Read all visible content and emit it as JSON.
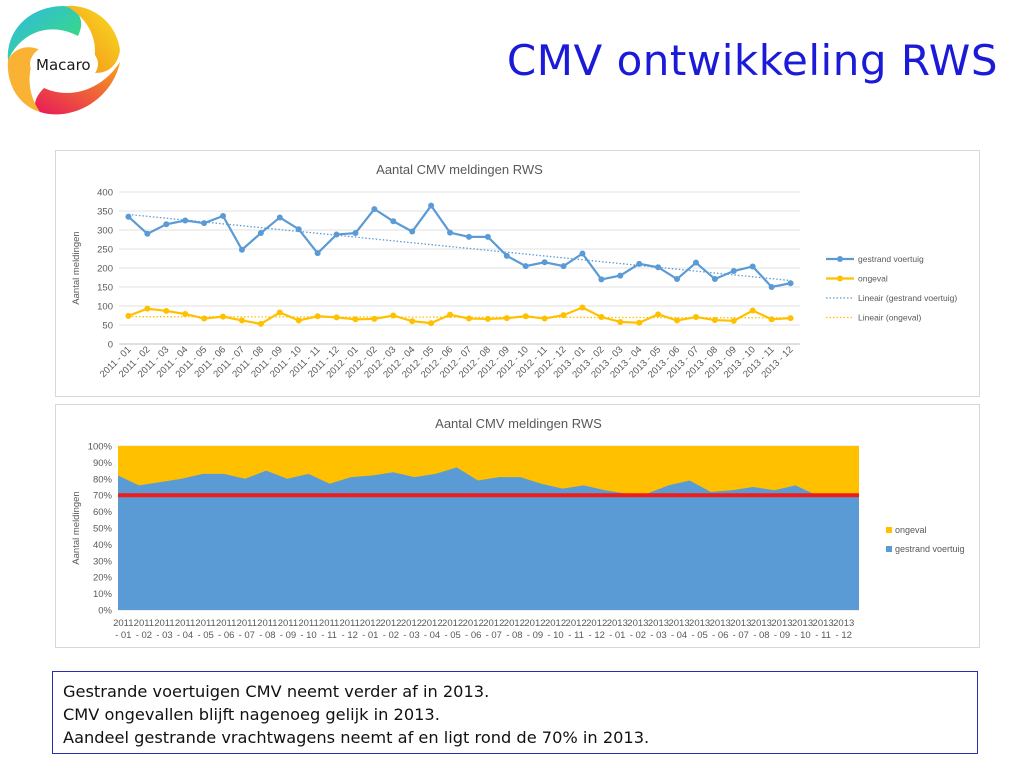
{
  "header": {
    "logo_text": "Macaro",
    "title": "CMV ontwikkeling RWS"
  },
  "chart_data": [
    {
      "type": "line",
      "title": "Aantal CMV meldingen RWS",
      "xlabel": "",
      "ylabel": "Aantal meldingen",
      "ylim": [
        0,
        400
      ],
      "yticks": [
        0,
        50,
        100,
        150,
        200,
        250,
        300,
        350,
        400
      ],
      "grid": true,
      "legend_position": "right",
      "categories": [
        "2011 - 01",
        "2011 - 02",
        "2011 - 03",
        "2011 - 04",
        "2011 - 05",
        "2011 - 06",
        "2011 - 07",
        "2011 - 08",
        "2011 - 09",
        "2011 - 10",
        "2011 - 11",
        "2011 - 12",
        "2012 - 01",
        "2012 - 02",
        "2012 - 03",
        "2012 - 04",
        "2012 - 05",
        "2012 - 06",
        "2012 - 07",
        "2012 - 08",
        "2012 - 09",
        "2012 - 10",
        "2012 - 11",
        "2012 - 12",
        "2013 - 01",
        "2013 - 02",
        "2013 - 03",
        "2013 - 04",
        "2013 - 05",
        "2013 - 06",
        "2013 - 07",
        "2013 - 08",
        "2013 - 09",
        "2013 - 10",
        "2013 - 11",
        "2013 - 12"
      ],
      "series": [
        {
          "name": "gestrand voertuig",
          "color": "#5b9bd5",
          "values": [
            335,
            290,
            315,
            325,
            318,
            337,
            248,
            292,
            333,
            302,
            239,
            288,
            292,
            355,
            323,
            296,
            364,
            293,
            282,
            282,
            232,
            205,
            215,
            205,
            238,
            170,
            180,
            211,
            202,
            171,
            214,
            171,
            192,
            204,
            150,
            160
          ]
        },
        {
          "name": "ongeval",
          "color": "#ffc000",
          "values": [
            74,
            93,
            87,
            79,
            67,
            72,
            62,
            53,
            83,
            62,
            73,
            70,
            65,
            66,
            75,
            60,
            55,
            77,
            67,
            66,
            68,
            73,
            67,
            76,
            96,
            71,
            58,
            56,
            78,
            62,
            71,
            63,
            61,
            88,
            65,
            68
          ]
        }
      ],
      "trendlines": [
        {
          "name": "Lineair (gestrand voertuig)",
          "color": "#5b9bd5",
          "start": 341,
          "end": 167
        },
        {
          "name": "Lineair (ongeval)",
          "color": "#ffc000",
          "start": 72,
          "end": 69
        }
      ]
    },
    {
      "type": "area",
      "stacked_percent": true,
      "title": "Aantal CMV meldingen RWS",
      "xlabel": "",
      "ylabel": "Aantal meldingen",
      "ylim": [
        0,
        100
      ],
      "yticks": [
        "0%",
        "10%",
        "20%",
        "30%",
        "40%",
        "50%",
        "60%",
        "70%",
        "80%",
        "90%",
        "100%"
      ],
      "grid": true,
      "legend_position": "right",
      "categories": [
        "2011 - 01",
        "2011 - 02",
        "2011 - 03",
        "2011 - 04",
        "2011 - 05",
        "2011 - 06",
        "2011 - 07",
        "2011 - 08",
        "2011 - 09",
        "2011 - 10",
        "2011 - 11",
        "2011 - 12",
        "2012 - 01",
        "2012 - 02",
        "2012 - 03",
        "2012 - 04",
        "2012 - 05",
        "2012 - 06",
        "2012 - 07",
        "2012 - 08",
        "2012 - 09",
        "2012 - 10",
        "2012 - 11",
        "2012 - 12",
        "2013 - 01",
        "2013 - 02",
        "2013 - 03",
        "2013 - 04",
        "2013 - 05",
        "2013 - 06",
        "2013 - 07",
        "2013 - 08",
        "2013 - 09",
        "2013 - 10",
        "2013 - 11",
        "2013 - 12"
      ],
      "series": [
        {
          "name": "gestrand voertuig",
          "color": "#5b9bd5",
          "values": [
            82,
            76,
            78,
            80,
            83,
            83,
            80,
            85,
            80,
            83,
            77,
            81,
            82,
            84,
            81,
            83,
            87,
            79,
            81,
            81,
            77,
            74,
            76,
            73,
            71,
            71,
            76,
            79,
            72,
            73,
            75,
            73,
            76,
            70,
            70,
            70
          ]
        },
        {
          "name": "ongeval",
          "color": "#ffc000",
          "values": [
            18,
            24,
            22,
            20,
            17,
            17,
            20,
            15,
            20,
            17,
            23,
            19,
            18,
            16,
            19,
            17,
            13,
            21,
            19,
            19,
            23,
            26,
            24,
            27,
            29,
            29,
            24,
            21,
            28,
            27,
            25,
            27,
            24,
            30,
            30,
            30
          ]
        }
      ],
      "reference_line": {
        "value": 70,
        "color": "#ee1c1c"
      }
    }
  ],
  "summary": {
    "lines": [
      "Gestrande voertuigen CMV neemt verder af in 2013.",
      "CMV ongevallen blijft nagenoeg gelijk in 2013.",
      "Aandeel gestrande vrachtwagens neemt af en ligt rond de 70% in 2013."
    ]
  }
}
